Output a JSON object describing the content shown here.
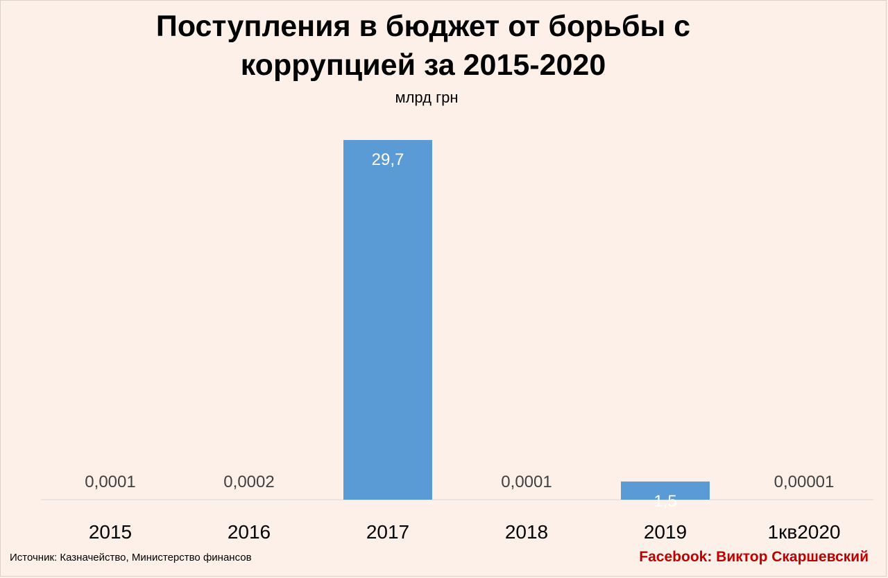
{
  "header": {
    "title": "Поступления в бюджет от борьбы с коррупцией за 2015-2020",
    "subtitle": "млрд грн"
  },
  "footer": {
    "source": "Источник: Казначейство, Министерство финансов",
    "credit": "Facebook: Виктор Скаршевский"
  },
  "colors": {
    "background": "#fdf0e8",
    "bar": "#5b9bd5",
    "credit": "#c00000",
    "outside_label": "#404040",
    "inside_label": "#ffffff"
  },
  "chart_data": {
    "type": "bar",
    "title": "Поступления в бюджет от борьбы с коррупцией за 2015-2020",
    "subtitle": "млрд грн",
    "categories": [
      "2015",
      "2016",
      "2017",
      "2018",
      "2019",
      "1кв2020"
    ],
    "values": [
      0.0001,
      0.0002,
      29.7,
      0.0001,
      1.5,
      1e-05
    ],
    "data_labels": [
      "0,0001",
      "0,0002",
      "29,7",
      "0,0001",
      "1,5",
      "0,00001"
    ],
    "ylim": [
      0,
      30
    ],
    "grid": false,
    "legend": "none"
  }
}
